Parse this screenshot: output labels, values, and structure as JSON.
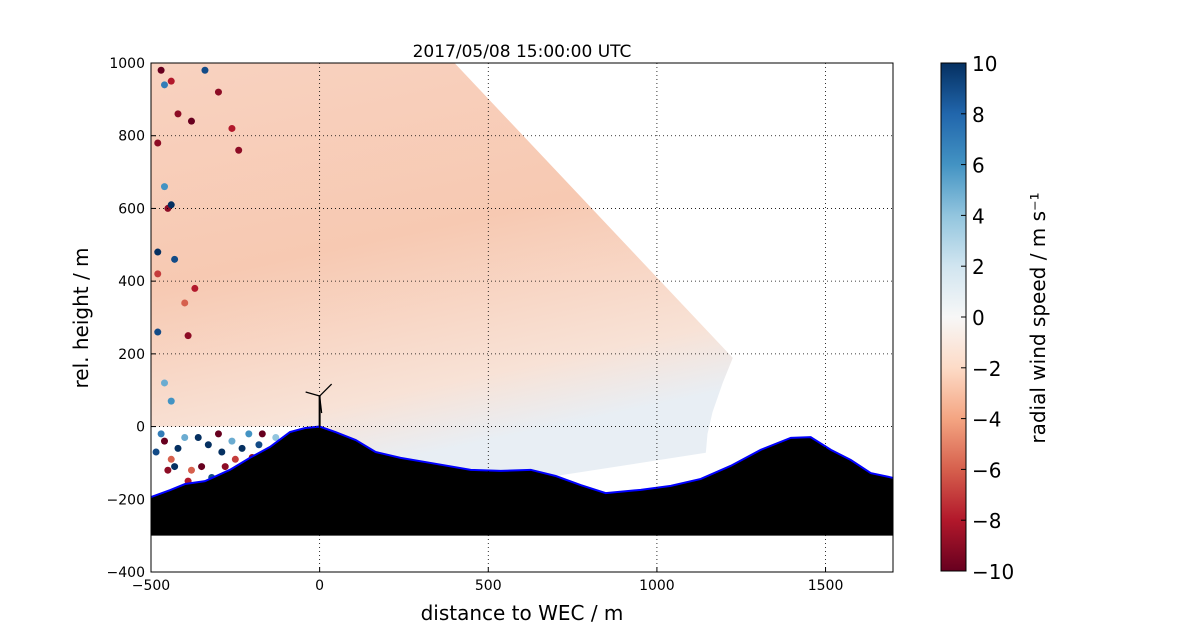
{
  "chart_data": {
    "type": "scatter",
    "title": "2017/05/08 15:00:00 UTC",
    "xlabel": "distance to WEC / m",
    "ylabel": "rel. height / m",
    "xlim": [
      -500,
      1700
    ],
    "ylim": [
      -400,
      1000
    ],
    "xticks": [
      -500,
      0,
      500,
      1000,
      1500
    ],
    "yticks": [
      -400,
      -200,
      0,
      200,
      400,
      600,
      800,
      1000
    ],
    "xtick_labels": [
      "−500",
      "0",
      "500",
      "1000",
      "1500"
    ],
    "ytick_labels": [
      "−400",
      "−200",
      "0",
      "200",
      "400",
      "600",
      "800",
      "1000"
    ],
    "grid": true,
    "colorbar": {
      "label": "radial wind speed / m s⁻¹",
      "range": [
        -10,
        10
      ],
      "colormap": "RdBu",
      "ticks": [
        10,
        8,
        6,
        4,
        2,
        0,
        -2,
        -4,
        -6,
        -8,
        -10
      ],
      "tick_labels": [
        "10",
        "8",
        "6",
        "4",
        "2",
        "0",
        "−2",
        "−4",
        "−6",
        "−8",
        "−10"
      ]
    },
    "scan_sector": {
      "dominant_value": -2,
      "outline": [
        [
          -500,
          1000
        ],
        [
          400,
          1000
        ],
        [
          1225,
          189
        ],
        [
          1195,
          120
        ],
        [
          1165,
          40
        ],
        [
          1150,
          -20
        ],
        [
          1145,
          -72
        ],
        [
          700,
          -136
        ],
        [
          537,
          -122
        ],
        [
          448,
          -119
        ],
        [
          329,
          -100
        ],
        [
          240,
          -86
        ],
        [
          166,
          -70
        ],
        [
          107,
          -37
        ],
        [
          47,
          -15
        ],
        [
          0,
          0
        ],
        [
          -500,
          0
        ]
      ]
    },
    "turbine": {
      "x": 0,
      "hub_height": 84
    },
    "terrain": {
      "base": -300,
      "x": [
        -500,
        -444,
        -399,
        -340,
        -266,
        -207,
        -147,
        -88,
        -43,
        0,
        47,
        107,
        166,
        240,
        329,
        448,
        537,
        626,
        700,
        774,
        848,
        952,
        1041,
        1130,
        1219,
        1308,
        1397,
        1456,
        1516,
        1575,
        1634,
        1700
      ],
      "height": [
        -194,
        -175,
        -158,
        -150,
        -119,
        -86,
        -56,
        -15,
        -4,
        0,
        -15,
        -37,
        -70,
        -86,
        -100,
        -119,
        -122,
        -119,
        -136,
        -161,
        -183,
        -174,
        -163,
        -144,
        -108,
        -64,
        -31,
        -29,
        -64,
        -92,
        -128,
        -141
      ]
    },
    "noise_points": [
      [
        -485,
        -70,
        9
      ],
      [
        -470,
        -20,
        7
      ],
      [
        -460,
        -40,
        -10
      ],
      [
        -450,
        -120,
        -9
      ],
      [
        -440,
        -90,
        -6
      ],
      [
        -430,
        -110,
        10
      ],
      [
        -420,
        -60,
        10
      ],
      [
        -400,
        -30,
        5
      ],
      [
        -390,
        -150,
        -8
      ],
      [
        -380,
        -120,
        -6
      ],
      [
        -360,
        -30,
        10
      ],
      [
        -350,
        -110,
        -10
      ],
      [
        -330,
        -50,
        10
      ],
      [
        -320,
        -140,
        9
      ],
      [
        -300,
        -20,
        -10
      ],
      [
        -290,
        -70,
        10
      ],
      [
        -280,
        -110,
        -9
      ],
      [
        -260,
        -40,
        5
      ],
      [
        -250,
        -90,
        -7
      ],
      [
        -230,
        -60,
        10
      ],
      [
        -210,
        -20,
        6
      ],
      [
        -200,
        -85,
        -9
      ],
      [
        -180,
        -50,
        9
      ],
      [
        -170,
        -20,
        -10
      ],
      [
        -150,
        -70,
        -8
      ],
      [
        -130,
        -30,
        4
      ],
      [
        -480,
        780,
        -9
      ],
      [
        -470,
        980,
        -10
      ],
      [
        -440,
        950,
        -8
      ],
      [
        -420,
        860,
        -9
      ],
      [
        -380,
        840,
        -10
      ],
      [
        -340,
        980,
        9
      ],
      [
        -300,
        920,
        -9
      ],
      [
        -260,
        820,
        -8
      ],
      [
        -240,
        760,
        -9
      ],
      [
        -460,
        660,
        6
      ],
      [
        -450,
        600,
        -9
      ],
      [
        -440,
        610,
        10
      ],
      [
        -480,
        480,
        10
      ],
      [
        -430,
        460,
        9
      ],
      [
        -480,
        260,
        9
      ],
      [
        -460,
        120,
        5
      ],
      [
        -440,
        70,
        6
      ],
      [
        -400,
        340,
        -6
      ],
      [
        -390,
        250,
        -9
      ],
      [
        -370,
        380,
        -8
      ],
      [
        -460,
        940,
        7
      ],
      [
        -480,
        420,
        -7
      ]
    ]
  }
}
